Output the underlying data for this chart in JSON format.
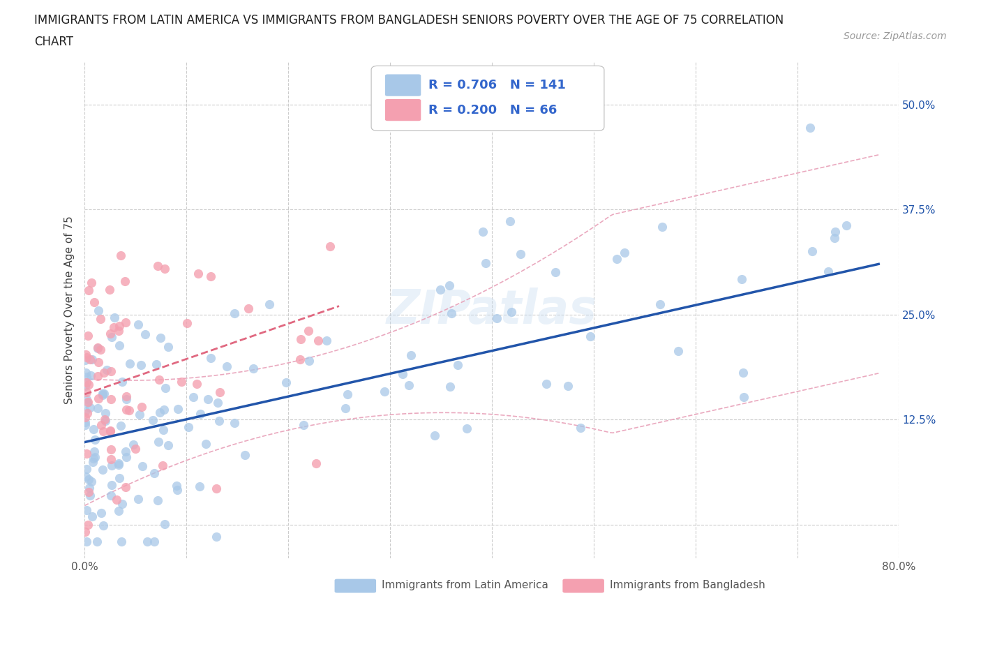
{
  "title_line1": "IMMIGRANTS FROM LATIN AMERICA VS IMMIGRANTS FROM BANGLADESH SENIORS POVERTY OVER THE AGE OF 75 CORRELATION",
  "title_line2": "CHART",
  "source": "Source: ZipAtlas.com",
  "ylabel": "Seniors Poverty Over the Age of 75",
  "legend_label1": "Immigrants from Latin America",
  "legend_label2": "Immigrants from Bangladesh",
  "R1": 0.706,
  "N1": 141,
  "R2": 0.2,
  "N2": 66,
  "color1": "#a8c8e8",
  "color2": "#f4a0b0",
  "line_color1": "#2255aa",
  "line_color2": "#e06880",
  "conf_color": "#e8a0b8",
  "watermark": "ZIPatlas",
  "xlim": [
    0.0,
    0.8
  ],
  "ylim": [
    -0.04,
    0.55
  ],
  "xticks": [
    0.0,
    0.1,
    0.2,
    0.3,
    0.4,
    0.5,
    0.6,
    0.7,
    0.8
  ],
  "ytick_vals": [
    0.0,
    0.125,
    0.25,
    0.375,
    0.5
  ],
  "gridline_color": "#cccccc",
  "background_color": "#ffffff",
  "seed1": 37,
  "seed2": 99,
  "blue_line_x0": 0.0,
  "blue_line_y0": 0.098,
  "blue_line_x1": 0.78,
  "blue_line_y1": 0.31,
  "pink_line_x0": 0.0,
  "pink_line_y0": 0.155,
  "pink_line_x1": 0.25,
  "pink_line_y1": 0.26
}
